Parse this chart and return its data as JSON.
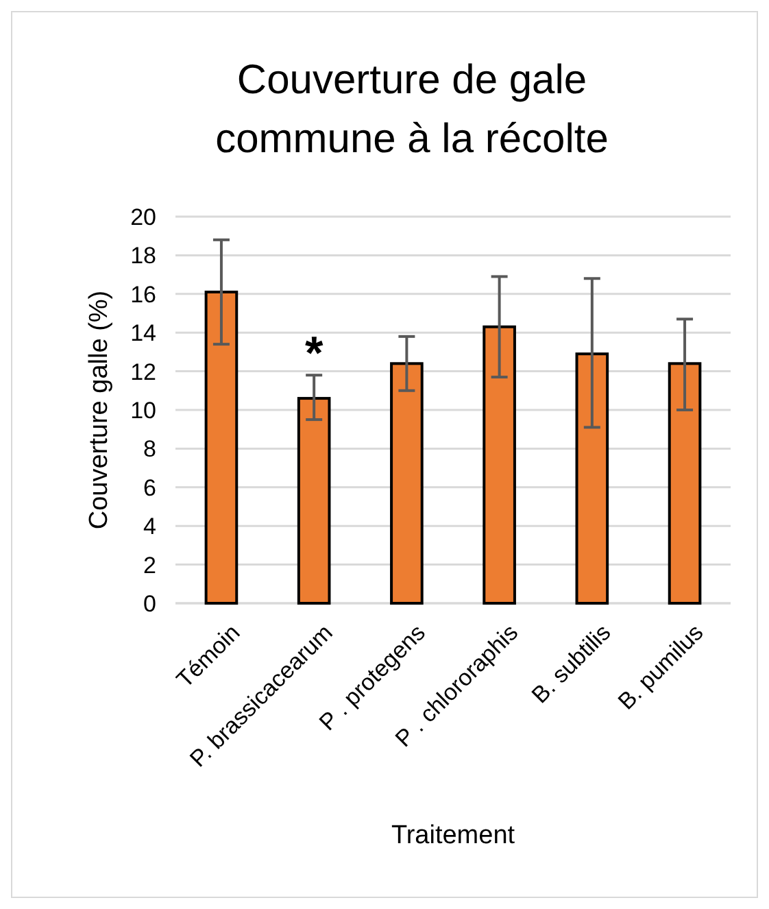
{
  "chart_data": {
    "type": "bar",
    "title": "Couverture de gale commune à la récolte",
    "xlabel": "Traitement",
    "ylabel": "Couverture galle (%)",
    "categories": [
      "Témoin",
      "P. brassicacearum",
      "P . protegens",
      "P . chlororaphis",
      "B. subtilis",
      "B. pumilus"
    ],
    "values": [
      16.1,
      10.6,
      12.4,
      14.3,
      12.9,
      12.4
    ],
    "errors": [
      [
        13.4,
        18.8
      ],
      [
        9.5,
        11.8
      ],
      [
        11.0,
        13.8
      ],
      [
        11.7,
        16.9
      ],
      [
        9.1,
        16.8
      ],
      [
        10.0,
        14.7
      ]
    ],
    "color": "#ed7d31",
    "ylim": [
      0,
      20
    ],
    "yticks": [
      0,
      2,
      4,
      6,
      8,
      10,
      12,
      14,
      16,
      18,
      20
    ],
    "grid": "y",
    "annotations": [
      "*"
    ]
  }
}
